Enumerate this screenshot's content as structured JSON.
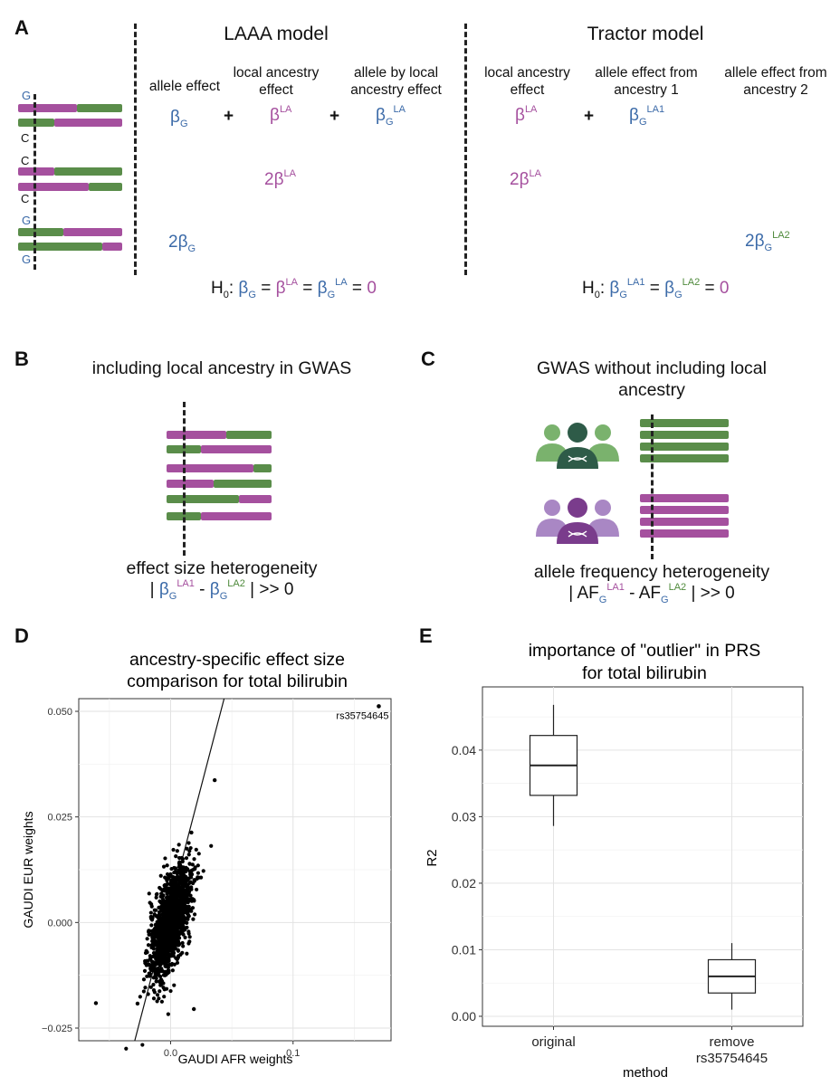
{
  "colors": {
    "pink": "#a5509e",
    "green": "#5a8d4a",
    "blue": "#3b6aa8",
    "dark_green": "#2e5b48",
    "dark_purple": "#7a3c8c"
  },
  "panel_a": {
    "label": "A",
    "laaa_title": "LAAA model",
    "tractor_title": "Tractor model",
    "alleles": [
      "G",
      "C",
      "C",
      "C",
      "G",
      "G"
    ],
    "col_allele_effect": "allele effect",
    "col_la_effect": "local ancestry effect",
    "col_allele_by_la": "allele by local ancestry effect",
    "col_tractor_la": "local ancestry effect",
    "col_tractor_anc1": "allele effect from ancestry 1",
    "col_tractor_anc2": "allele effect from ancestry 2",
    "beta": "β",
    "two": "2",
    "sub_G": "G",
    "sup_LA": "LA",
    "sup_LA1": "LA1",
    "sup_LA2": "LA2",
    "plus": "+",
    "h0_prefix": "H",
    "h0_sub": "0",
    "colon": ":",
    "equals": "=",
    "zero": "0"
  },
  "panel_b": {
    "label": "B",
    "title": "including local ancestry in GWAS",
    "footer_line1": "effect size heterogeneity",
    "bar_open": "|",
    "minus": "-",
    "bar_close": "| >> 0"
  },
  "panel_c": {
    "label": "C",
    "title": "GWAS without including local ancestry",
    "footer_line1": "allele frequency heterogeneity",
    "af": "AF",
    "bar_open": "|",
    "minus": "-",
    "bar_close": "| >> 0"
  },
  "panel_d": {
    "label": "D",
    "chart_data": {
      "type": "scatter",
      "title": "ancestry-specific effect size comparison for total bilirubin",
      "title_lines": [
        "ancestry-specific effect size",
        "comparison for total bilirubin"
      ],
      "xlabel": "GAUDI AFR weights",
      "ylabel": "GAUDI EUR weights",
      "xlim": [
        -0.075,
        0.18
      ],
      "ylim": [
        -0.028,
        0.053
      ],
      "x_ticks": [
        "0.0",
        "0.1"
      ],
      "x_tick_values": [
        0.0,
        0.1
      ],
      "y_ticks": [
        "0.050",
        "0.025",
        "0.000",
        "−0.025"
      ],
      "y_tick_values": [
        0.05,
        0.025,
        0.0,
        -0.025
      ],
      "grid": true,
      "outlier": {
        "x": 0.17,
        "y": 0.0512,
        "label": "rs35754645"
      },
      "extra_points": [
        [
          -0.061,
          -0.0191
        ],
        [
          0.036,
          0.0337
        ],
        [
          -0.027,
          -0.0192
        ],
        [
          0.017,
          0.0213
        ],
        [
          0.019,
          -0.0205
        ]
      ],
      "fit_line": {
        "slope": 1.11,
        "intercept": 0.0045
      },
      "cloud": {
        "n": 1500,
        "x_mean": 0.0,
        "x_sd": 0.0085,
        "y_sd": 0.0066,
        "corr": 0.62,
        "seed": 7
      }
    }
  },
  "panel_e": {
    "label": "E",
    "chart_data": {
      "type": "box",
      "title": "importance of \"outlier\" in PRS for total bilirubin",
      "title_lines": [
        "importance of \"outlier\" in PRS",
        "for total bilirubin"
      ],
      "xlabel": "method",
      "ylabel": "R2",
      "ylim": [
        -0.0015,
        0.0495
      ],
      "y_ticks": [
        "0.00",
        "0.01",
        "0.02",
        "0.03",
        "0.04"
      ],
      "y_tick_values": [
        0.0,
        0.01,
        0.02,
        0.03,
        0.04
      ],
      "categories": [
        "original",
        "remove rs35754645"
      ],
      "category_lines": [
        [
          "original"
        ],
        [
          "remove",
          "rs35754645"
        ]
      ],
      "boxes": [
        {
          "min": 0.0286,
          "q1": 0.0332,
          "median": 0.0377,
          "q3": 0.0422,
          "max": 0.0468
        },
        {
          "min": 0.001,
          "q1": 0.0035,
          "median": 0.006,
          "q3": 0.0085,
          "max": 0.011
        }
      ],
      "grid": true
    }
  }
}
